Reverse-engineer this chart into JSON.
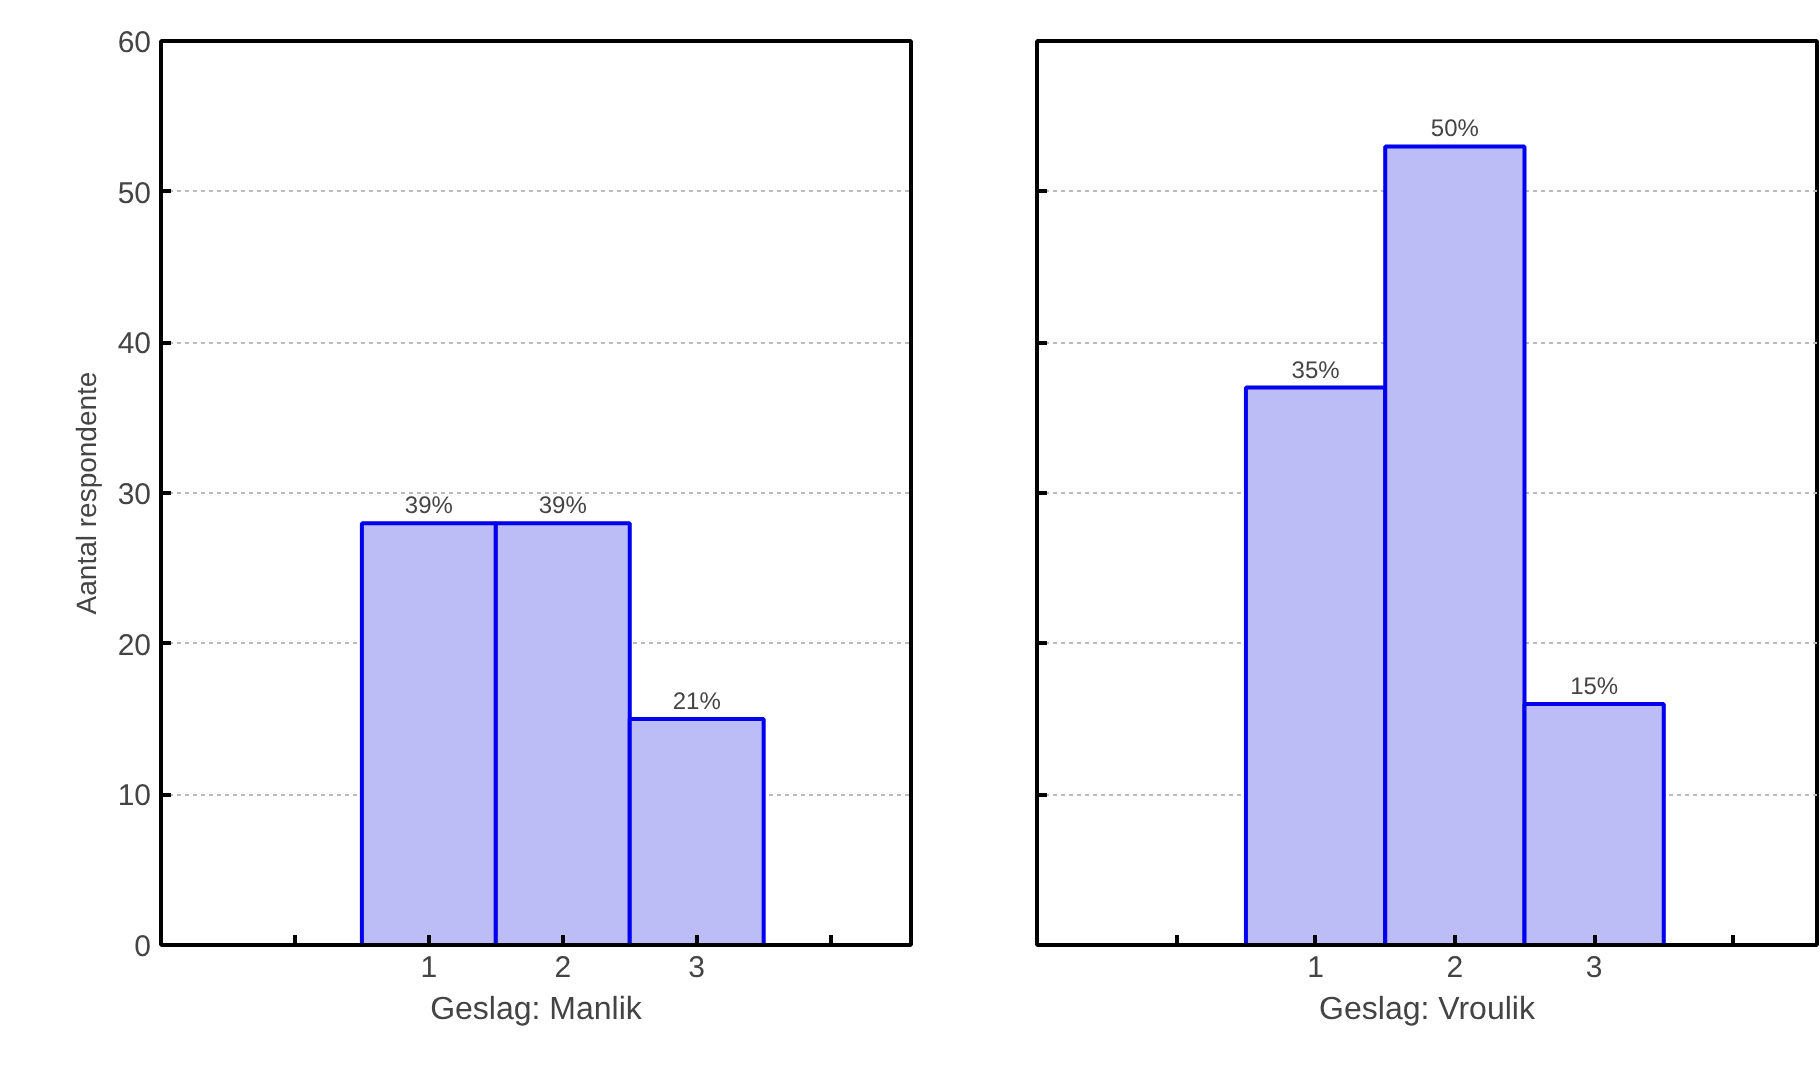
{
  "chart_data": [
    {
      "type": "bar",
      "xlabel": "Geslag: Manlik",
      "ylabel": "Aantal respondente",
      "categories": [
        "1",
        "2",
        "3"
      ],
      "values": [
        28,
        28,
        15
      ],
      "color": "#bcbcf6",
      "ylim": [
        0,
        60
      ],
      "yticks": [
        0,
        10,
        20,
        30,
        40,
        50,
        60
      ],
      "grid": "y",
      "annotations": [
        {
          "text": "39%",
          "x": "1",
          "y": 28
        },
        {
          "text": "39%",
          "x": "2",
          "y": 28
        },
        {
          "text": "21%",
          "x": "3",
          "y": 15
        }
      ]
    },
    {
      "type": "bar",
      "xlabel": "Geslag: Vroulik",
      "categories": [
        "1",
        "2",
        "3"
      ],
      "values": [
        37,
        53,
        16
      ],
      "color": "#bcbcf6",
      "ylim": [
        0,
        60
      ],
      "yticks": [
        0,
        10,
        20,
        30,
        40,
        50,
        60
      ],
      "grid": "y",
      "tick_labels": "x",
      "annotations": [
        {
          "text": "35%",
          "x": "1",
          "y": 37
        },
        {
          "text": "50%",
          "x": "2",
          "y": 53
        },
        {
          "text": "15%",
          "x": "3",
          "y": 16
        }
      ]
    }
  ]
}
